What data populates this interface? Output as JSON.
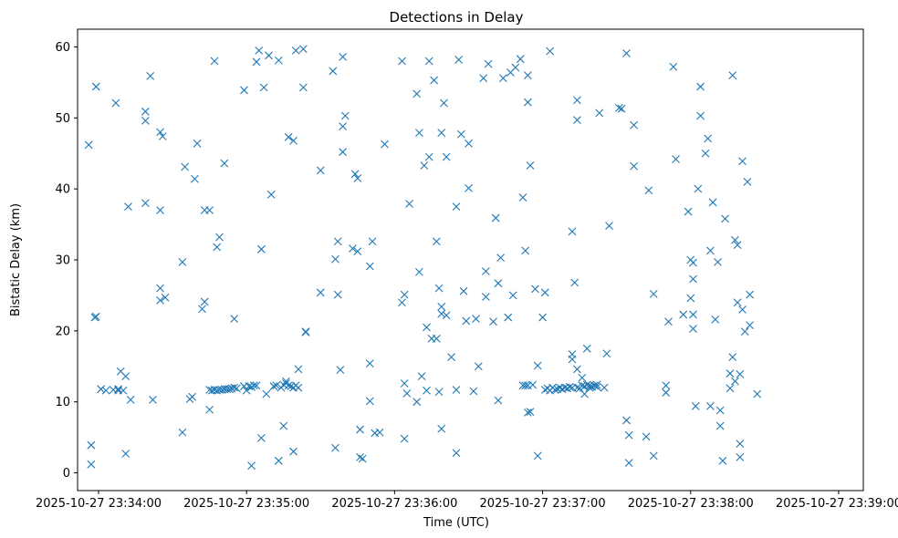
{
  "chart_data": {
    "type": "scatter",
    "title": "Detections in Delay",
    "xlabel": "Time (UTC)",
    "ylabel": "Bistatic Delay (km)",
    "x_unit": "seconds after 2025-10-27 23:34:00",
    "xlim": [
      -8.5,
      310
    ],
    "ylim": [
      -2.5,
      62.5
    ],
    "x_ticks": [
      0,
      60,
      120,
      180,
      240,
      300
    ],
    "x_tick_labels": [
      "2025-10-27 23:34:00",
      "2025-10-27 23:35:00",
      "2025-10-27 23:36:00",
      "2025-10-27 23:37:00",
      "2025-10-27 23:38:00",
      "2025-10-27 23:39:00"
    ],
    "y_ticks": [
      0,
      10,
      20,
      30,
      40,
      50,
      60
    ],
    "y_tick_labels": [
      "0",
      "10",
      "20",
      "30",
      "40",
      "50",
      "60"
    ],
    "marker": "x",
    "color": "#1f77b4",
    "series": [
      {
        "name": "detections",
        "points": [
          [
            -4,
            46.2
          ],
          [
            -3,
            3.9
          ],
          [
            -3,
            1.2
          ],
          [
            -1.5,
            21.9
          ],
          [
            -1,
            22
          ],
          [
            -1,
            54.4
          ],
          [
            1,
            11.8
          ],
          [
            3,
            11.6
          ],
          [
            6,
            11.7
          ],
          [
            7,
            52.1
          ],
          [
            8,
            11.6
          ],
          [
            8,
            11.8
          ],
          [
            9,
            14.3
          ],
          [
            10,
            11.6
          ],
          [
            11,
            13.6
          ],
          [
            11,
            2.7
          ],
          [
            12,
            37.5
          ],
          [
            13,
            10.3
          ],
          [
            19,
            50.9
          ],
          [
            19,
            49.6
          ],
          [
            19,
            38
          ],
          [
            21,
            55.9
          ],
          [
            22,
            10.3
          ],
          [
            25,
            37
          ],
          [
            25,
            26
          ],
          [
            25,
            24.3
          ],
          [
            25,
            48
          ],
          [
            26,
            47.4
          ],
          [
            27,
            24.7
          ],
          [
            34,
            29.7
          ],
          [
            34,
            5.7
          ],
          [
            35,
            43.1
          ],
          [
            37,
            10.4
          ],
          [
            38,
            10.7
          ],
          [
            39,
            41.4
          ],
          [
            40,
            46.4
          ],
          [
            42,
            23.1
          ],
          [
            43,
            24.1
          ],
          [
            43,
            37
          ],
          [
            45,
            37
          ],
          [
            45,
            8.9
          ],
          [
            45,
            11.7
          ],
          [
            46,
            11.6
          ],
          [
            47,
            11.7
          ],
          [
            47,
            58
          ],
          [
            48,
            11.6
          ],
          [
            48,
            31.8
          ],
          [
            49,
            33.2
          ],
          [
            49,
            11.7
          ],
          [
            50,
            11.7
          ],
          [
            51,
            11.8
          ],
          [
            51,
            43.6
          ],
          [
            52,
            11.8
          ],
          [
            53,
            11.8
          ],
          [
            54,
            11.9
          ],
          [
            55,
            12
          ],
          [
            55,
            21.7
          ],
          [
            56,
            11.9
          ],
          [
            59,
            53.9
          ],
          [
            59,
            12.2
          ],
          [
            60,
            11.6
          ],
          [
            61,
            12.2
          ],
          [
            62,
            12.1
          ],
          [
            62,
            1
          ],
          [
            63,
            12.3
          ],
          [
            64,
            12.3
          ],
          [
            64,
            57.9
          ],
          [
            65,
            59.5
          ],
          [
            66,
            31.5
          ],
          [
            66,
            4.9
          ],
          [
            67,
            54.3
          ],
          [
            68,
            11.1
          ],
          [
            69,
            58.8
          ],
          [
            70,
            39.2
          ],
          [
            71,
            12.2
          ],
          [
            72,
            12.3
          ],
          [
            73,
            58.1
          ],
          [
            73,
            1.7
          ],
          [
            74,
            12
          ],
          [
            75,
            6.6
          ],
          [
            75,
            12.4
          ],
          [
            76,
            12.6
          ],
          [
            76,
            12.9
          ],
          [
            77,
            12.3
          ],
          [
            77,
            47.3
          ],
          [
            78,
            12.2
          ],
          [
            79,
            46.8
          ],
          [
            79,
            12
          ],
          [
            79,
            3
          ],
          [
            80,
            12.3
          ],
          [
            80,
            59.5
          ],
          [
            81,
            14.6
          ],
          [
            81,
            12
          ],
          [
            83,
            59.7
          ],
          [
            83,
            54.3
          ],
          [
            84,
            19.9
          ],
          [
            84,
            19.8
          ],
          [
            90,
            25.4
          ],
          [
            90,
            42.6
          ],
          [
            95,
            56.6
          ],
          [
            96,
            30.1
          ],
          [
            96,
            3.5
          ],
          [
            97,
            25.1
          ],
          [
            97,
            32.6
          ],
          [
            98,
            14.5
          ],
          [
            99,
            48.8
          ],
          [
            99,
            45.2
          ],
          [
            99,
            58.6
          ],
          [
            100,
            50.3
          ],
          [
            103,
            31.6
          ],
          [
            104,
            42.1
          ],
          [
            105,
            41.5
          ],
          [
            105,
            31.2
          ],
          [
            106,
            2.2
          ],
          [
            106,
            6.1
          ],
          [
            107,
            2
          ],
          [
            110,
            15.4
          ],
          [
            110,
            29.1
          ],
          [
            110,
            10.1
          ],
          [
            111,
            32.6
          ],
          [
            112,
            5.6
          ],
          [
            114,
            5.7
          ],
          [
            116,
            46.3
          ],
          [
            123,
            58
          ],
          [
            123,
            24
          ],
          [
            124,
            25.1
          ],
          [
            124,
            4.8
          ],
          [
            124,
            12.6
          ],
          [
            125,
            11.2
          ],
          [
            126,
            37.9
          ],
          [
            129,
            10
          ],
          [
            129,
            53.4
          ],
          [
            130,
            28.3
          ],
          [
            130,
            47.9
          ],
          [
            131,
            13.6
          ],
          [
            132,
            43.3
          ],
          [
            133,
            20.5
          ],
          [
            133,
            11.6
          ],
          [
            134,
            44.5
          ],
          [
            134,
            58
          ],
          [
            135,
            18.9
          ],
          [
            136,
            55.3
          ],
          [
            137,
            18.9
          ],
          [
            137,
            32.6
          ],
          [
            138,
            11.4
          ],
          [
            138,
            26
          ],
          [
            139,
            22.4
          ],
          [
            139,
            23.4
          ],
          [
            139,
            47.9
          ],
          [
            139,
            6.2
          ],
          [
            140,
            52.1
          ],
          [
            141,
            22.2
          ],
          [
            141,
            44.5
          ],
          [
            143,
            16.3
          ],
          [
            145,
            11.7
          ],
          [
            145,
            2.8
          ],
          [
            145,
            37.5
          ],
          [
            146,
            58.2
          ],
          [
            147,
            47.7
          ],
          [
            148,
            25.6
          ],
          [
            149,
            21.4
          ],
          [
            150,
            40.1
          ],
          [
            150,
            46.4
          ],
          [
            152,
            11.5
          ],
          [
            153,
            21.7
          ],
          [
            154,
            15
          ],
          [
            156,
            55.6
          ],
          [
            157,
            28.4
          ],
          [
            157,
            24.8
          ],
          [
            158,
            57.6
          ],
          [
            160,
            21.3
          ],
          [
            161,
            35.9
          ],
          [
            162,
            26.7
          ],
          [
            162,
            10.2
          ],
          [
            163,
            30.3
          ],
          [
            164,
            55.6
          ],
          [
            166,
            21.9
          ],
          [
            167,
            56.4
          ],
          [
            168,
            25
          ],
          [
            169,
            57.1
          ],
          [
            171,
            58.3
          ],
          [
            172,
            38.8
          ],
          [
            172,
            12.3
          ],
          [
            173,
            31.3
          ],
          [
            173,
            12.3
          ],
          [
            174,
            8.5
          ],
          [
            174,
            12.3
          ],
          [
            174,
            52.2
          ],
          [
            174,
            56
          ],
          [
            175,
            8.6
          ],
          [
            175,
            43.3
          ],
          [
            176,
            12.4
          ],
          [
            177,
            25.9
          ],
          [
            178,
            15.1
          ],
          [
            178,
            2.4
          ],
          [
            180,
            21.9
          ],
          [
            181,
            25.4
          ],
          [
            181,
            11.7
          ],
          [
            182,
            11.9
          ],
          [
            183,
            11.6
          ],
          [
            183,
            59.4
          ],
          [
            184,
            12
          ],
          [
            185,
            11.7
          ],
          [
            186,
            11.8
          ],
          [
            187,
            12
          ],
          [
            188,
            11.8
          ],
          [
            189,
            12
          ],
          [
            190,
            11.9
          ],
          [
            191,
            12.1
          ],
          [
            192,
            12
          ],
          [
            192,
            16.7
          ],
          [
            192,
            34
          ],
          [
            192,
            16
          ],
          [
            193,
            26.8
          ],
          [
            194,
            12
          ],
          [
            194,
            52.5
          ],
          [
            194,
            14.6
          ],
          [
            194,
            49.7
          ],
          [
            195,
            11.9
          ],
          [
            196,
            12.3
          ],
          [
            196,
            13.4
          ],
          [
            197,
            12.2
          ],
          [
            197,
            11.1
          ],
          [
            198,
            12.4
          ],
          [
            198,
            17.5
          ],
          [
            199,
            12
          ],
          [
            199,
            12.3
          ],
          [
            200,
            12.1
          ],
          [
            201,
            12.3
          ],
          [
            202,
            12.4
          ],
          [
            202,
            12.1
          ],
          [
            203,
            50.7
          ],
          [
            205,
            12
          ],
          [
            206,
            16.8
          ],
          [
            207,
            34.8
          ],
          [
            211,
            51.4
          ],
          [
            212,
            51.3
          ],
          [
            214,
            7.4
          ],
          [
            214,
            59.1
          ],
          [
            215,
            5.3
          ],
          [
            215,
            1.4
          ],
          [
            217,
            43.2
          ],
          [
            217,
            49
          ],
          [
            222,
            5.1
          ],
          [
            223,
            39.8
          ],
          [
            225,
            25.2
          ],
          [
            225,
            2.4
          ],
          [
            230,
            11.3
          ],
          [
            230,
            12.3
          ],
          [
            231,
            21.3
          ],
          [
            233,
            57.2
          ],
          [
            234,
            44.2
          ],
          [
            237,
            22.3
          ],
          [
            239,
            36.8
          ],
          [
            240,
            24.6
          ],
          [
            240,
            30
          ],
          [
            241,
            29.6
          ],
          [
            241,
            27.3
          ],
          [
            241,
            22.3
          ],
          [
            241,
            20.3
          ],
          [
            242,
            9.4
          ],
          [
            243,
            40
          ],
          [
            244,
            54.4
          ],
          [
            244,
            50.3
          ],
          [
            246,
            45
          ],
          [
            247,
            47.1
          ],
          [
            248,
            31.3
          ],
          [
            248,
            9.4
          ],
          [
            249,
            38.1
          ],
          [
            250,
            21.6
          ],
          [
            251,
            29.7
          ],
          [
            252,
            6.6
          ],
          [
            252,
            8.8
          ],
          [
            253,
            1.7
          ],
          [
            254,
            35.8
          ],
          [
            256,
            14
          ],
          [
            256,
            11.9
          ],
          [
            257,
            56
          ],
          [
            257,
            16.3
          ],
          [
            258,
            32.8
          ],
          [
            258,
            12.9
          ],
          [
            259,
            24
          ],
          [
            259,
            32.1
          ],
          [
            260,
            2.2
          ],
          [
            260,
            4.1
          ],
          [
            260,
            13.9
          ],
          [
            261,
            43.9
          ],
          [
            261,
            23
          ],
          [
            262,
            19.9
          ],
          [
            263,
            41
          ],
          [
            264,
            20.8
          ],
          [
            264,
            25.1
          ],
          [
            267,
            11.1
          ]
        ]
      }
    ]
  }
}
